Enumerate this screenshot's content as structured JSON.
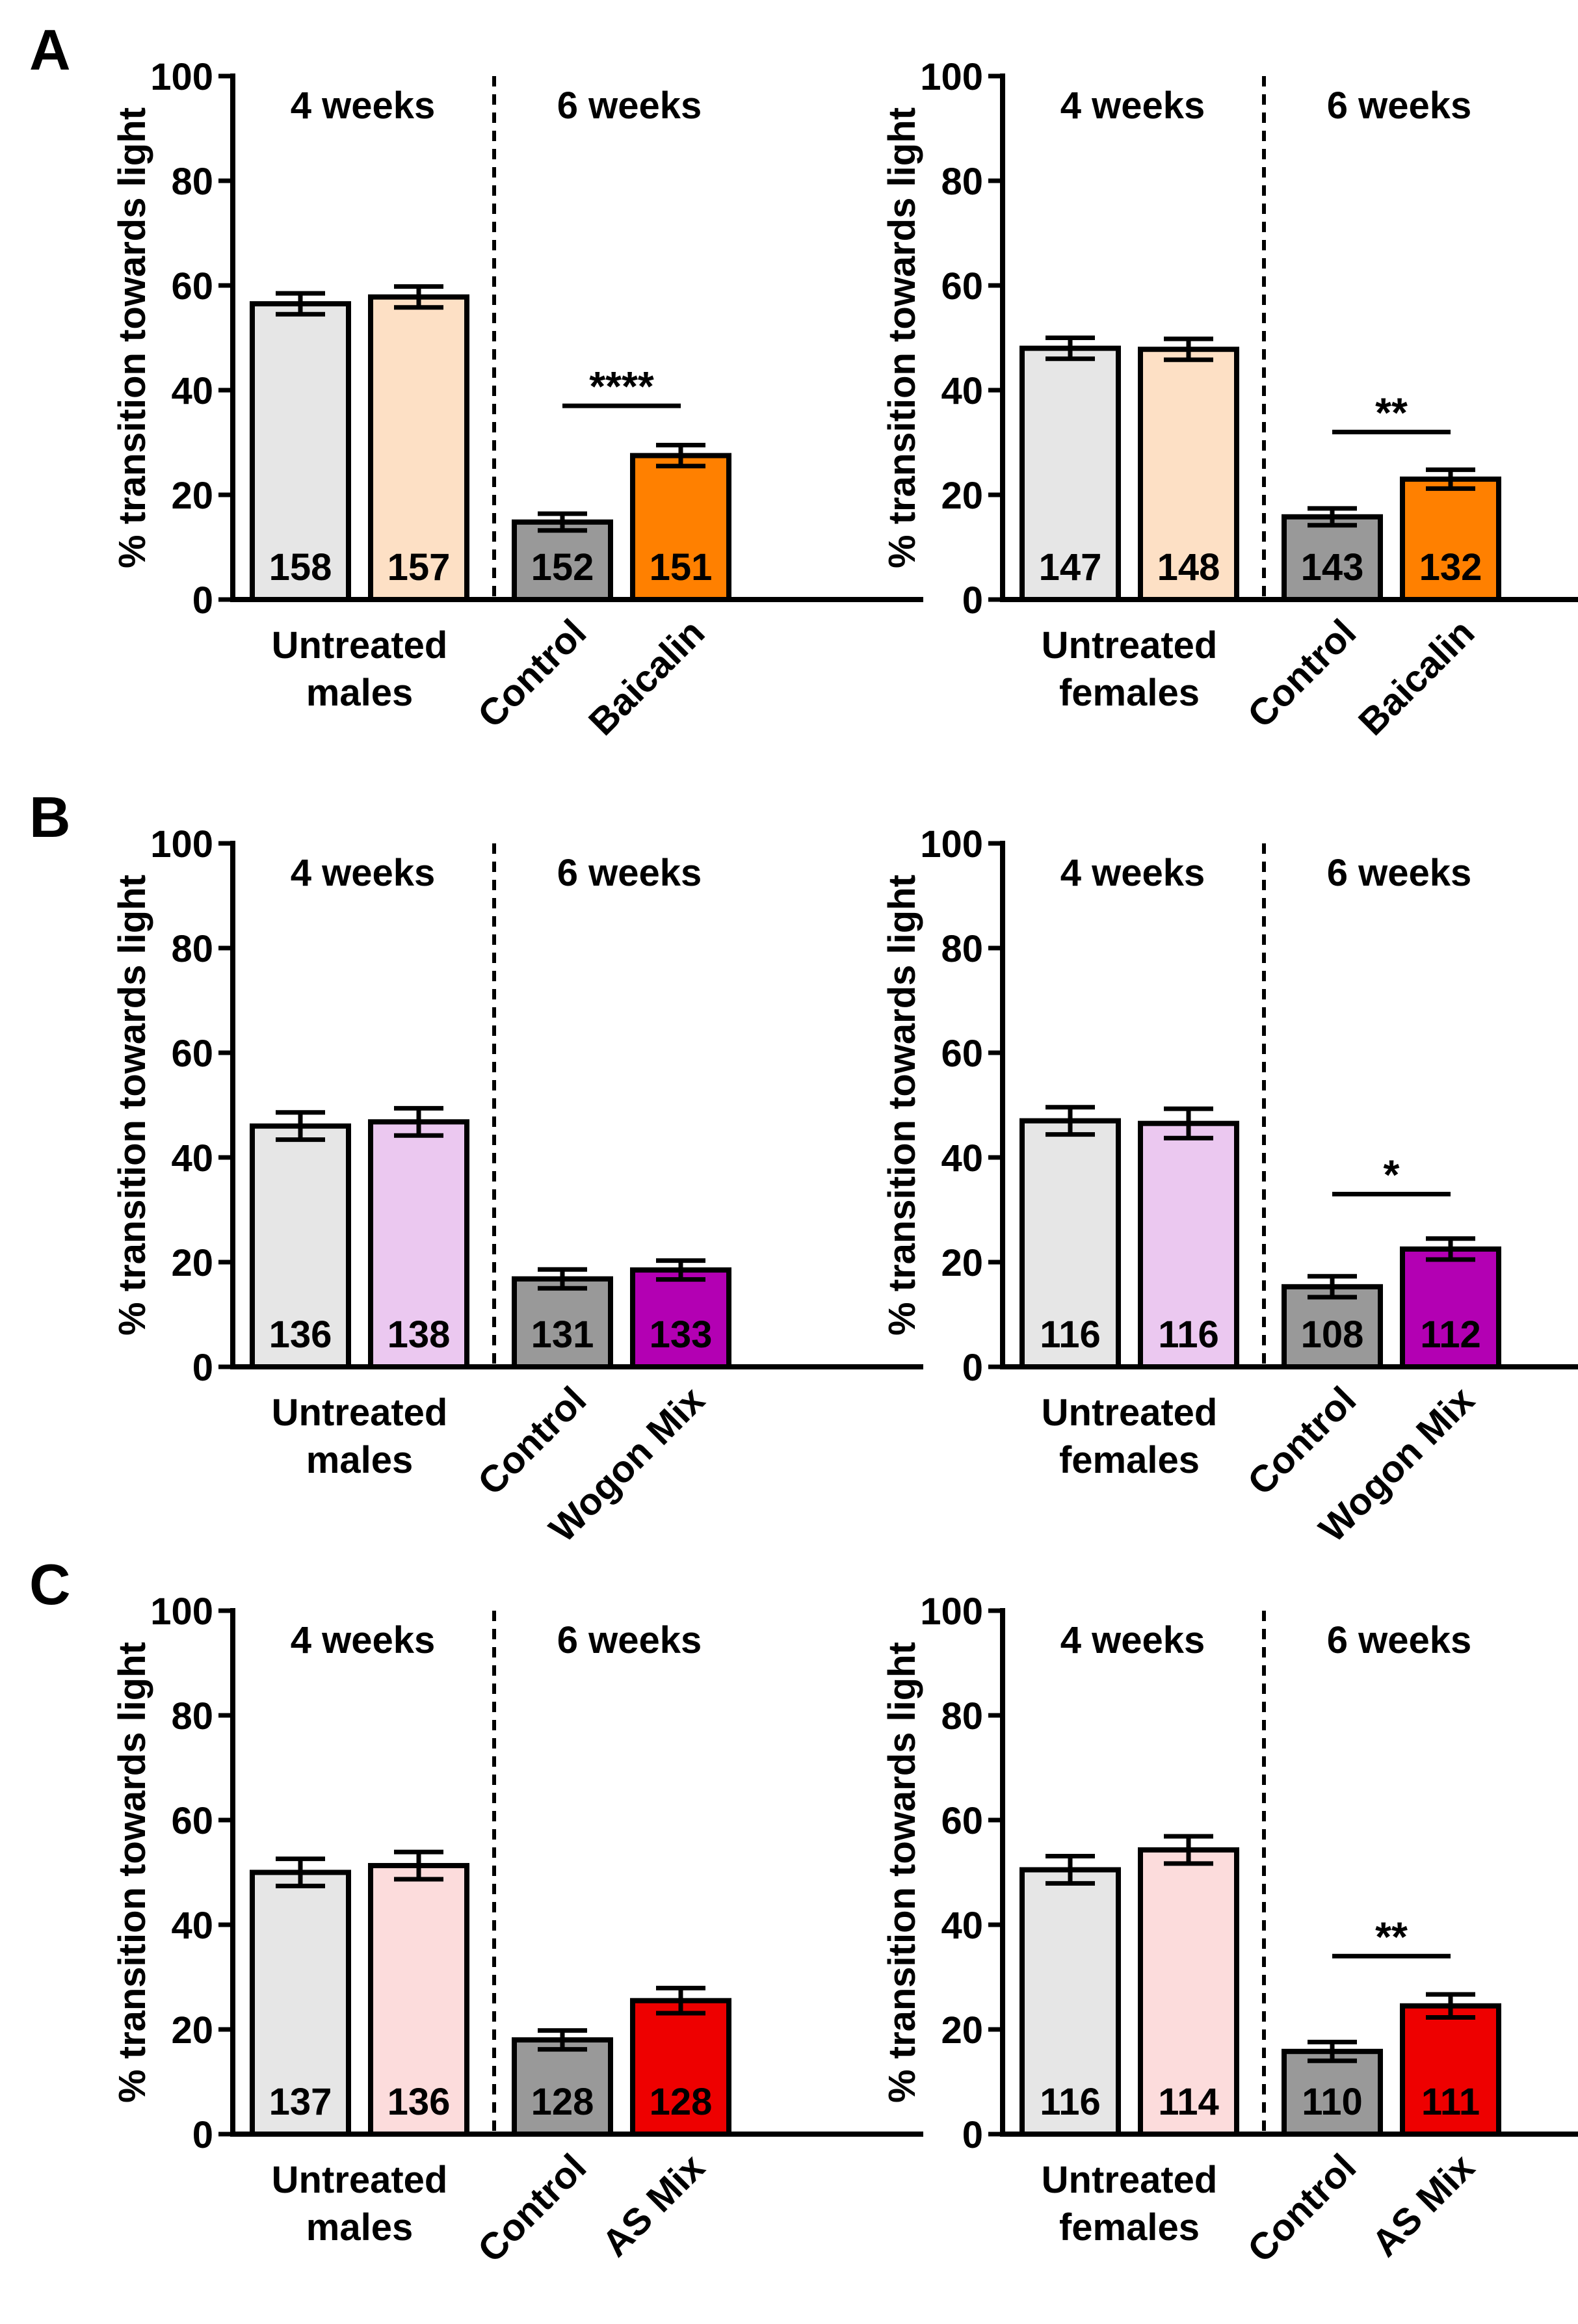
{
  "figure": {
    "ylabel": "% transition towards light",
    "yticks": [
      0,
      20,
      40,
      60,
      80,
      100
    ],
    "ylim": [
      0,
      100
    ]
  },
  "chart_data": [
    {
      "type": "bar",
      "panel_letter": "A",
      "period_labels": [
        "4 weeks",
        "6 weeks"
      ],
      "ylabel": "% transition towards light",
      "ylim": [
        0,
        100
      ],
      "yticks": [
        0,
        20,
        40,
        60,
        80,
        100
      ],
      "group_label": [
        "Untreated",
        "males"
      ],
      "categories": [
        "",
        "",
        "Control",
        "Baicalin"
      ],
      "values": [
        56.5,
        57.8,
        14.8,
        27.5
      ],
      "errors": [
        2.0,
        2.0,
        1.6,
        2.0
      ],
      "n": [
        "158",
        "157",
        "152",
        "151"
      ],
      "colors": [
        "#e6e6e6",
        "#fde0c5",
        "#999999",
        "#ff8000"
      ],
      "significance": {
        "text": "****",
        "from": 2,
        "to": 3,
        "at": 37
      }
    },
    {
      "type": "bar",
      "panel_letter": "",
      "period_labels": [
        "4 weeks",
        "6 weeks"
      ],
      "ylabel": "% transition towards light",
      "ylim": [
        0,
        100
      ],
      "yticks": [
        0,
        20,
        40,
        60,
        80,
        100
      ],
      "group_label": [
        "Untreated",
        "females"
      ],
      "categories": [
        "",
        "",
        "Control",
        "Baicalin"
      ],
      "values": [
        48.0,
        47.8,
        15.8,
        23.0
      ],
      "errors": [
        2.0,
        2.0,
        1.6,
        1.8
      ],
      "n": [
        "147",
        "148",
        "143",
        "132"
      ],
      "colors": [
        "#e6e6e6",
        "#fde0c5",
        "#999999",
        "#ff8000"
      ],
      "significance": {
        "text": "**",
        "from": 2,
        "to": 3,
        "at": 32
      }
    },
    {
      "type": "bar",
      "panel_letter": "B",
      "period_labels": [
        "4 weeks",
        "6 weeks"
      ],
      "ylabel": "% transition towards light",
      "ylim": [
        0,
        100
      ],
      "yticks": [
        0,
        20,
        40,
        60,
        80,
        100
      ],
      "group_label": [
        "Untreated",
        "males"
      ],
      "categories": [
        "",
        "",
        "Control",
        "Wogon Mix"
      ],
      "values": [
        46.0,
        46.8,
        16.8,
        18.5
      ],
      "errors": [
        2.6,
        2.6,
        1.8,
        1.8
      ],
      "n": [
        "136",
        "138",
        "131",
        "133"
      ],
      "colors": [
        "#e6e6e6",
        "#ebc8f0",
        "#999999",
        "#b300b3"
      ],
      "significance": null
    },
    {
      "type": "bar",
      "panel_letter": "",
      "period_labels": [
        "4 weeks",
        "6 weeks"
      ],
      "ylabel": "% transition towards light",
      "ylim": [
        0,
        100
      ],
      "yticks": [
        0,
        20,
        40,
        60,
        80,
        100
      ],
      "group_label": [
        "Untreated",
        "females"
      ],
      "categories": [
        "",
        "",
        "Control",
        "Wogon Mix"
      ],
      "values": [
        47.0,
        46.5,
        15.3,
        22.5
      ],
      "errors": [
        2.6,
        2.8,
        2.0,
        2.0
      ],
      "n": [
        "116",
        "116",
        "108",
        "112"
      ],
      "colors": [
        "#e6e6e6",
        "#ebc8f0",
        "#999999",
        "#b300b3"
      ],
      "significance": {
        "text": "*",
        "from": 2,
        "to": 3,
        "at": 33
      }
    },
    {
      "type": "bar",
      "panel_letter": "C",
      "period_labels": [
        "4 weeks",
        "6 weeks"
      ],
      "ylabel": "% transition towards light",
      "ylim": [
        0,
        100
      ],
      "yticks": [
        0,
        20,
        40,
        60,
        80,
        100
      ],
      "group_label": [
        "Untreated",
        "males"
      ],
      "categories": [
        "",
        "",
        "Control",
        "AS Mix"
      ],
      "values": [
        50.0,
        51.3,
        18.0,
        25.5
      ],
      "errors": [
        2.6,
        2.6,
        1.8,
        2.4
      ],
      "n": [
        "137",
        "136",
        "128",
        "128"
      ],
      "colors": [
        "#e6e6e6",
        "#fcdcdc",
        "#999999",
        "#ee0000"
      ],
      "significance": null
    },
    {
      "type": "bar",
      "panel_letter": "",
      "period_labels": [
        "4 weeks",
        "6 weeks"
      ],
      "ylabel": "% transition towards light",
      "ylim": [
        0,
        100
      ],
      "yticks": [
        0,
        20,
        40,
        60,
        80,
        100
      ],
      "group_label": [
        "Untreated",
        "females"
      ],
      "categories": [
        "",
        "",
        "Control",
        "AS Mix"
      ],
      "values": [
        50.5,
        54.3,
        15.8,
        24.5
      ],
      "errors": [
        2.6,
        2.6,
        1.8,
        2.2
      ],
      "n": [
        "116",
        "114",
        "110",
        "111"
      ],
      "colors": [
        "#e6e6e6",
        "#fcdcdc",
        "#999999",
        "#ee0000"
      ],
      "significance": {
        "text": "**",
        "from": 2,
        "to": 3,
        "at": 34
      }
    }
  ]
}
